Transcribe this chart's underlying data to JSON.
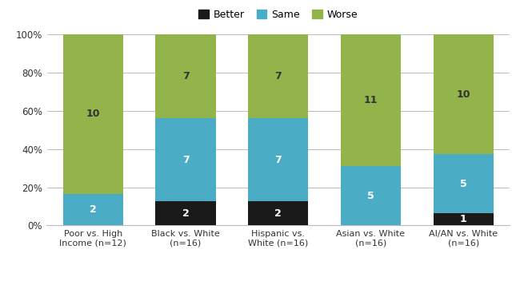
{
  "categories": [
    "Poor vs. High\nIncome (n=12)",
    "Black vs. White\n(n=16)",
    "Hispanic vs.\nWhite (n=16)",
    "Asian vs. White\n(n=16)",
    "AI/AN vs. White\n(n=16)"
  ],
  "better_counts": [
    0,
    2,
    2,
    0,
    1
  ],
  "same_counts": [
    2,
    7,
    7,
    5,
    5
  ],
  "worse_counts": [
    10,
    7,
    7,
    11,
    10
  ],
  "better_pct": [
    0.0,
    12.5,
    12.5,
    0.0,
    6.25
  ],
  "same_pct": [
    16.6667,
    43.75,
    43.75,
    31.25,
    31.25
  ],
  "worse_pct": [
    83.3333,
    43.75,
    43.75,
    68.75,
    62.5
  ],
  "color_better": "#1a1a1a",
  "color_same": "#4bacc6",
  "color_worse": "#92b44a",
  "legend_labels": [
    "Better",
    "Same",
    "Worse"
  ],
  "ytick_labels": [
    "0%",
    "20%",
    "40%",
    "60%",
    "80%",
    "100%"
  ],
  "ytick_values": [
    0,
    20,
    40,
    60,
    80,
    100
  ],
  "bar_width": 0.65,
  "background_color": "#ffffff",
  "grid_color": "#bbbbbb"
}
